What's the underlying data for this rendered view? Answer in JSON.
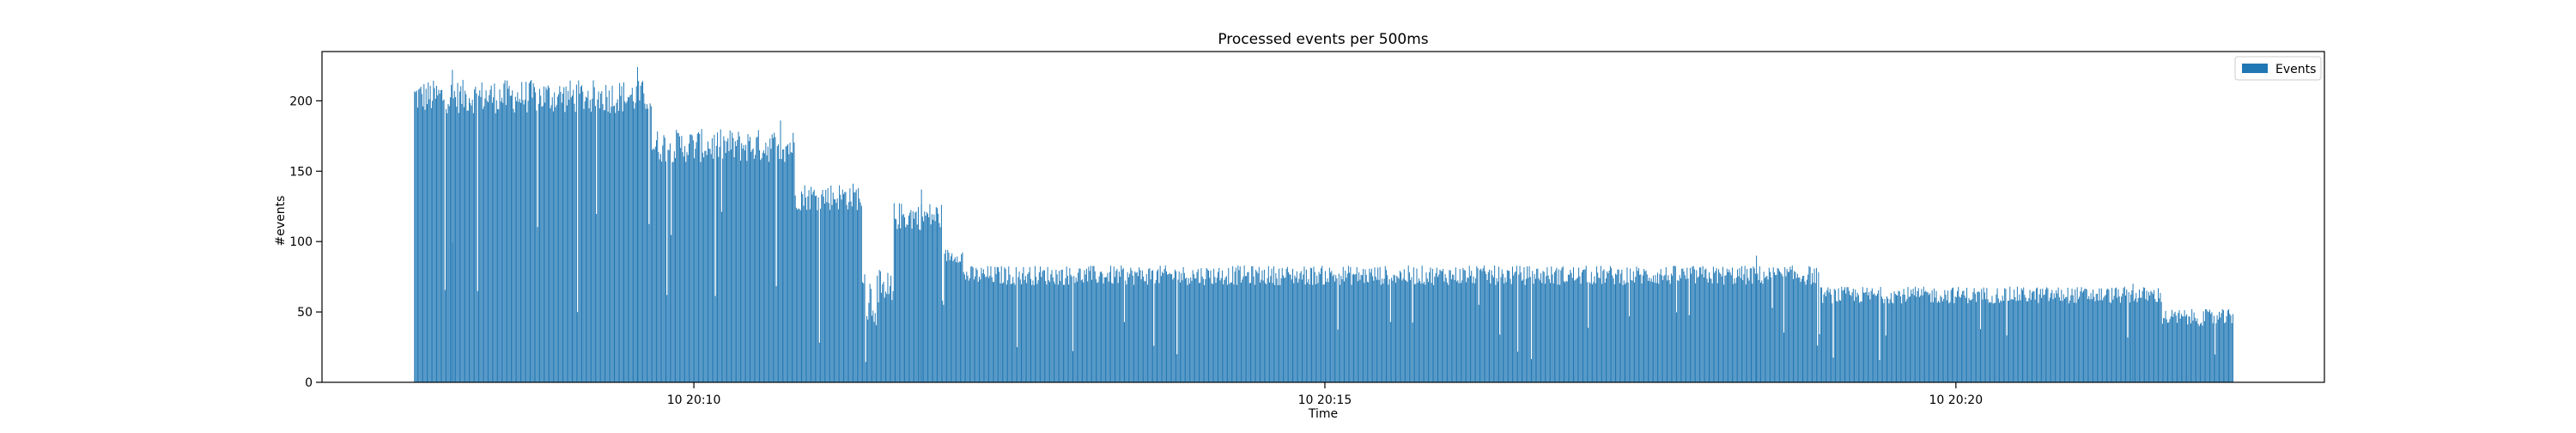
{
  "chart_data": {
    "type": "bar",
    "title": "Processed events per 500ms",
    "xlabel": "Time",
    "ylabel": "#events",
    "ylim": [
      0,
      235
    ],
    "xlim": [
      "10 20:07:03.2",
      "10 20:22:55.2"
    ],
    "xticks": [
      {
        "t": "10 20:10:00",
        "label": "10 20:10"
      },
      {
        "t": "10 20:15:00",
        "label": "10 20:15"
      },
      {
        "t": "10 20:20:00",
        "label": "10 20:20"
      }
    ],
    "yticks": [
      0,
      50,
      100,
      150,
      200
    ],
    "grid": false,
    "legend": {
      "position": "top-right",
      "entries": [
        "Events"
      ]
    },
    "bar_interval": "500ms",
    "colors": {
      "bar": "#1f77b4",
      "axis": "#000000"
    },
    "series": [
      {
        "name": "Events",
        "segments": [
          {
            "start": "10 20:07:47",
            "end": "10 20:09:40",
            "level": 203,
            "spread": 12
          },
          {
            "start": "10 20:09:40",
            "end": "10 20:10:48",
            "level": 168,
            "spread": 12
          },
          {
            "start": "10 20:10:48",
            "end": "10 20:11:20",
            "level": 132,
            "spread": 10
          },
          {
            "start": "10 20:11:20",
            "end": "10 20:11:35",
            "level": 60,
            "spread": 20
          },
          {
            "start": "10 20:11:35",
            "end": "10 20:11:58",
            "level": 118,
            "spread": 10
          },
          {
            "start": "10 20:11:58",
            "end": "10 20:12:08",
            "level": 90,
            "spread": 5
          },
          {
            "start": "10 20:12:08",
            "end": "10 20:18:55",
            "level": 76,
            "spread": 7
          },
          {
            "start": "10 20:18:55",
            "end": "10 20:21:38",
            "level": 62,
            "spread": 6
          },
          {
            "start": "10 20:21:38",
            "end": "10 20:22:12",
            "level": 46,
            "spread": 6
          }
        ],
        "highlights": [
          {
            "t": "10 20:09:33",
            "value": 224
          },
          {
            "t": "10 20:08:05",
            "value": 222
          },
          {
            "t": "10 20:10:41",
            "value": 186
          },
          {
            "t": "10 20:11:48",
            "value": 137
          },
          {
            "t": "10 20:18:25",
            "value": 90
          },
          {
            "t": "10 20:21:24",
            "value": 70
          }
        ]
      }
    ]
  }
}
